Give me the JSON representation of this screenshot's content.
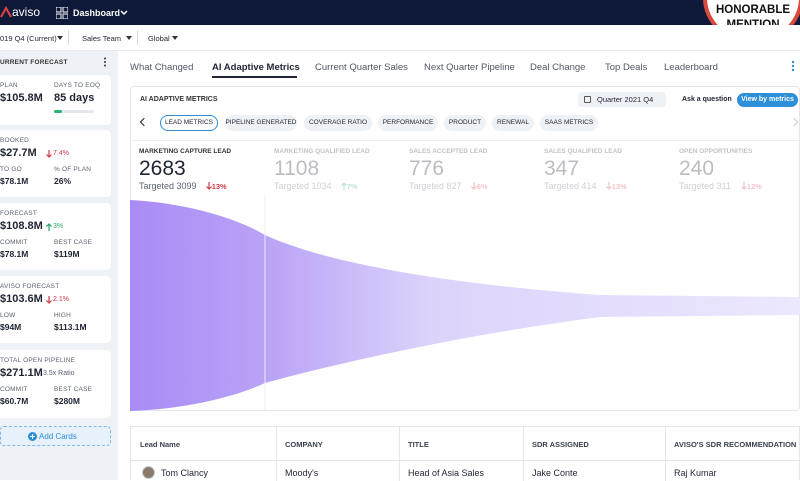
{
  "top_bar": {
    "logo": "aviso",
    "nav": "Dashboard",
    "badge": [
      "HONORABLE",
      "MENTION"
    ]
  },
  "filters": [
    "019 Q4 (Current)",
    "Sales Team",
    "Global"
  ],
  "sidebar": {
    "title": "URRENT FORECAST",
    "add_button": "Add Cards",
    "cards": [
      {
        "label": "PLAN",
        "value": "$105.8M",
        "aside": {
          "label": "DAYS TO EOQ",
          "value": "85 days"
        }
      },
      {
        "label": "BOOKED",
        "value": "$27.7M",
        "change": "7.4%",
        "trend": "down",
        "details": [
          {
            "label": "TO GO",
            "value": "$78.1M"
          },
          {
            "label": "% OF PLAN",
            "value": "26%"
          }
        ]
      },
      {
        "label": "FORECAST",
        "value": "$108.8M",
        "change": "3%",
        "trend": "up",
        "details": [
          {
            "label": "COMMIT",
            "value": "$78.1M"
          },
          {
            "label": "BEST CASE",
            "value": "$119M"
          }
        ]
      },
      {
        "label": "AVISO FORECAST",
        "value": "$103.6M",
        "change": "2.1%",
        "trend": "down",
        "details": [
          {
            "label": "LOW",
            "value": "$94M"
          },
          {
            "label": "HIGH",
            "value": "$113.1M"
          }
        ]
      },
      {
        "label": "TOTAL OPEN PIPELINE",
        "value": "$271.1M",
        "note": "3.5x Ratio",
        "details": [
          {
            "label": "COMMIT",
            "value": "$60.7M"
          },
          {
            "label": "BEST CASE",
            "value": "$280M"
          }
        ]
      }
    ]
  },
  "tabs": [
    "What Changed",
    "AI Adaptive Metrics",
    "Current Quarter Sales",
    "Next Quarter Pipeline",
    "Deal Change",
    "Top Deals",
    "Leaderboard"
  ],
  "active_tab": 1,
  "panel": {
    "title": "AI ADAPTIVE METRICS",
    "period": "Quarter 2021 Q4",
    "ask": "Ask a question",
    "view_button": "View by metrics",
    "chips": [
      "LEAD METRICS",
      "PIPELINE GENERATED",
      "COVERAGE RATIO",
      "PERFORMANCE",
      "PRODUCT",
      "RENEWAL",
      "SAAS METRICS"
    ],
    "active_chip": 0,
    "stages": [
      {
        "label": "MARKETING CAPTURE LEAD",
        "value": "2683",
        "target": "Targeted 3099",
        "change": "13%",
        "trend": "down"
      },
      {
        "label": "MARKETING QUALIFIED LEAD",
        "value": "1108",
        "target": "Targeted 1034",
        "change": "7%",
        "trend": "up"
      },
      {
        "label": "SALES ACCEPTED LEAD",
        "value": "776",
        "target": "Targeted 827",
        "change": "6%",
        "trend": "down"
      },
      {
        "label": "SALES QUALIFIED LEAD",
        "value": "347",
        "target": "Targeted 414",
        "change": "13%",
        "trend": "down"
      },
      {
        "label": "OPEN OPPORTUNITIES",
        "value": "240",
        "target": "Targeted 311",
        "change": "12%",
        "trend": "down"
      }
    ],
    "active_stage": 0
  },
  "table": {
    "headers": [
      "Lead Name",
      "COMPANY",
      "TITLE",
      "SDR ASSIGNED",
      "AVISO'S SDR RECOMMENDATION"
    ],
    "rows": [
      [
        "Tom Clancy",
        "Moody's",
        "Head of Asia Sales",
        "Jake Conte",
        "Raj Kumar"
      ]
    ]
  }
}
